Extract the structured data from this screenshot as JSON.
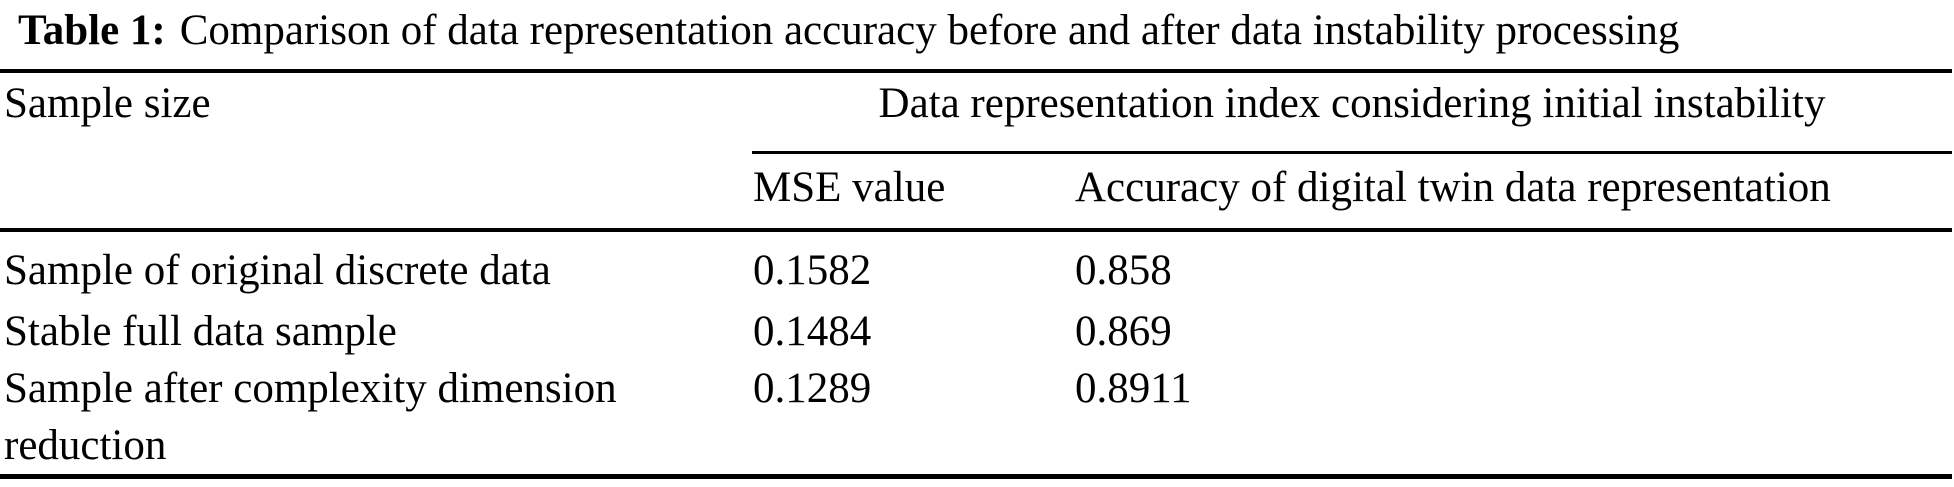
{
  "caption": {
    "label": "Table 1:",
    "text": "Comparison of data representation accuracy before and after data instability processing"
  },
  "table": {
    "col1_header": "Sample size",
    "span_header": "Data representation index considering initial instability",
    "sub_headers": [
      "MSE value",
      "Accuracy of digital twin data representation"
    ],
    "rows": [
      {
        "label": "Sample of original discrete data",
        "mse": "0.1582",
        "accuracy": "0.858"
      },
      {
        "label": "Stable full data sample",
        "mse": "0.1484",
        "accuracy": "0.869"
      },
      {
        "label": "Sample after complexity dimension reduction",
        "mse": "0.1289",
        "accuracy": "0.8911"
      }
    ]
  },
  "colors": {
    "text": "#000000",
    "background": "#ffffff",
    "rule": "#000000"
  }
}
